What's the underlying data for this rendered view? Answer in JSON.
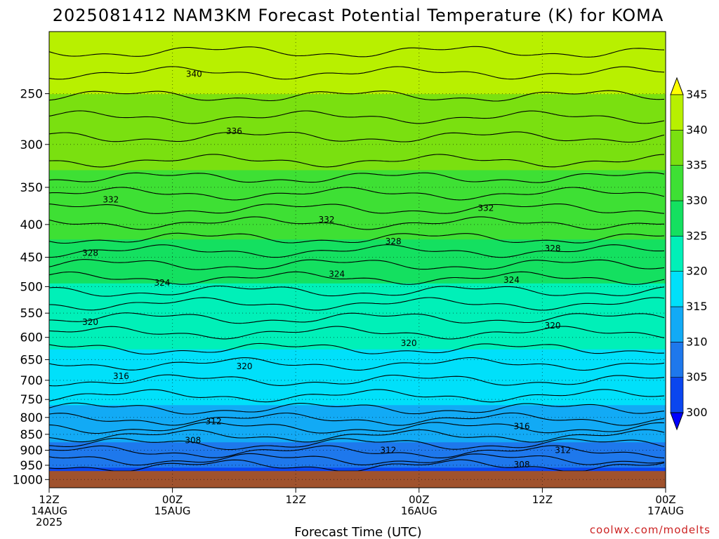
{
  "chart_data": {
    "type": "heatmap",
    "title": "2025081412 NAM3KM Forecast Potential Temperature (K) for KOMA",
    "xlabel": "Forecast Time (UTC)",
    "ylabel": "",
    "x_ticks": [
      {
        "hour": 0,
        "line1": "12Z",
        "line2": "14AUG",
        "line3": "2025"
      },
      {
        "hour": 12,
        "line1": "00Z",
        "line2": "15AUG",
        "line3": ""
      },
      {
        "hour": 24,
        "line1": "12Z",
        "line2": "",
        "line3": ""
      },
      {
        "hour": 36,
        "line1": "00Z",
        "line2": "16AUG",
        "line3": ""
      },
      {
        "hour": 48,
        "line1": "12Z",
        "line2": "",
        "line3": ""
      },
      {
        "hour": 60,
        "line1": "00Z",
        "line2": "17AUG",
        "line3": ""
      }
    ],
    "xlim": [
      0,
      60
    ],
    "y_ticks": [
      250,
      300,
      350,
      400,
      450,
      500,
      550,
      600,
      650,
      700,
      750,
      800,
      850,
      900,
      950,
      1000
    ],
    "ylim": [
      1030,
      200
    ],
    "y_scale": "log",
    "surface_pressure": 970,
    "colorbar": {
      "levels": [
        300,
        305,
        310,
        315,
        320,
        325,
        330,
        335,
        340,
        345
      ],
      "colors": [
        "#0000ff",
        "#0a46ef",
        "#1e78ec",
        "#12aaf5",
        "#00e0fa",
        "#00f0b8",
        "#14e060",
        "#3ee034",
        "#7ae010",
        "#b8f000",
        "#ffff00"
      ]
    },
    "profile": [
      {
        "p": 200,
        "theta": 345
      },
      {
        "p": 215,
        "theta": 342
      },
      {
        "p": 250,
        "theta": 340
      },
      {
        "p": 300,
        "theta": 337
      },
      {
        "p": 350,
        "theta": 333.5
      },
      {
        "p": 400,
        "theta": 331.5
      },
      {
        "p": 450,
        "theta": 328
      },
      {
        "p": 500,
        "theta": 324.5
      },
      {
        "p": 550,
        "theta": 321.5
      },
      {
        "p": 600,
        "theta": 320.5
      },
      {
        "p": 650,
        "theta": 319.5
      },
      {
        "p": 700,
        "theta": 318
      },
      {
        "p": 750,
        "theta": 316
      },
      {
        "p": 800,
        "theta": 313
      },
      {
        "p": 850,
        "theta": 311
      },
      {
        "p": 900,
        "theta": 309
      },
      {
        "p": 950,
        "theta": 306
      },
      {
        "p": 970,
        "theta": 304
      }
    ],
    "contour_labels": [
      {
        "value": "340",
        "hour": 14.1,
        "p": 233
      },
      {
        "value": "336",
        "hour": 18,
        "p": 286
      },
      {
        "value": "332",
        "hour": 6.0,
        "p": 366
      },
      {
        "value": "332",
        "hour": 27,
        "p": 393
      },
      {
        "value": "332",
        "hour": 42.5,
        "p": 377
      },
      {
        "value": "328",
        "hour": 4.0,
        "p": 443
      },
      {
        "value": "328",
        "hour": 33.5,
        "p": 425
      },
      {
        "value": "328",
        "hour": 49,
        "p": 436
      },
      {
        "value": "324",
        "hour": 11,
        "p": 493
      },
      {
        "value": "324",
        "hour": 28,
        "p": 478
      },
      {
        "value": "324",
        "hour": 45,
        "p": 488
      },
      {
        "value": "320",
        "hour": 4.0,
        "p": 568
      },
      {
        "value": "320",
        "hour": 19,
        "p": 666
      },
      {
        "value": "320",
        "hour": 35,
        "p": 613
      },
      {
        "value": "320",
        "hour": 49,
        "p": 575
      },
      {
        "value": "316",
        "hour": 7.0,
        "p": 690
      },
      {
        "value": "316",
        "hour": 46,
        "p": 826
      },
      {
        "value": "312",
        "hour": 16,
        "p": 812
      },
      {
        "value": "312",
        "hour": 33,
        "p": 900
      },
      {
        "value": "312",
        "hour": 50,
        "p": 900
      },
      {
        "value": "308",
        "hour": 14,
        "p": 869
      },
      {
        "value": "308",
        "hour": 46,
        "p": 948
      }
    ]
  },
  "credit": "coolwx.com/modelts"
}
